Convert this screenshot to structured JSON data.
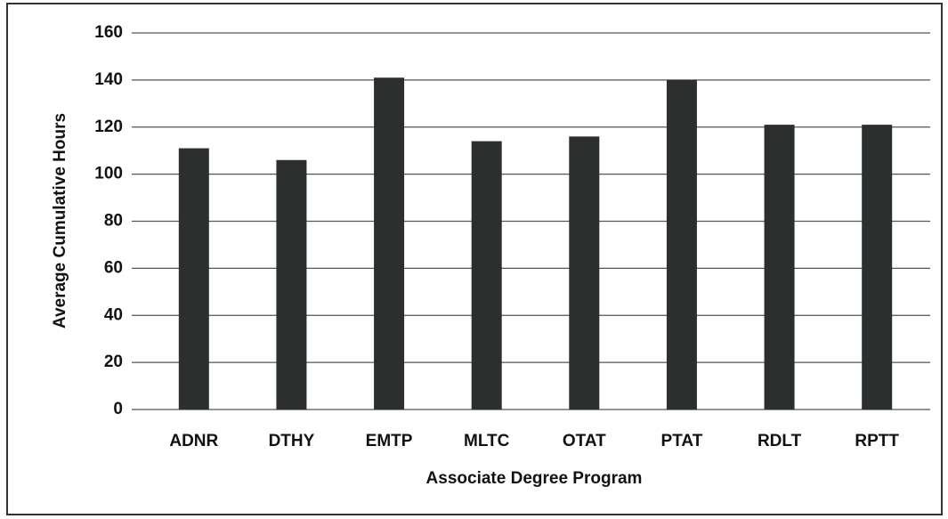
{
  "chart_data": {
    "type": "bar",
    "x_label": "Associate Degree Program",
    "y_label": "Average Cumulative Hours",
    "categories": [
      "ADNR",
      "DTHY",
      "EMTP",
      "MLTC",
      "OTAT",
      "PTAT",
      "RDLT",
      "RPTT"
    ],
    "values": [
      111,
      106,
      141,
      114,
      116,
      140,
      121,
      121
    ],
    "color": "#2b302f",
    "ylim": [
      0,
      160
    ],
    "yticks": [
      0,
      20,
      40,
      60,
      80,
      100,
      120,
      140,
      160
    ],
    "grid": true
  }
}
